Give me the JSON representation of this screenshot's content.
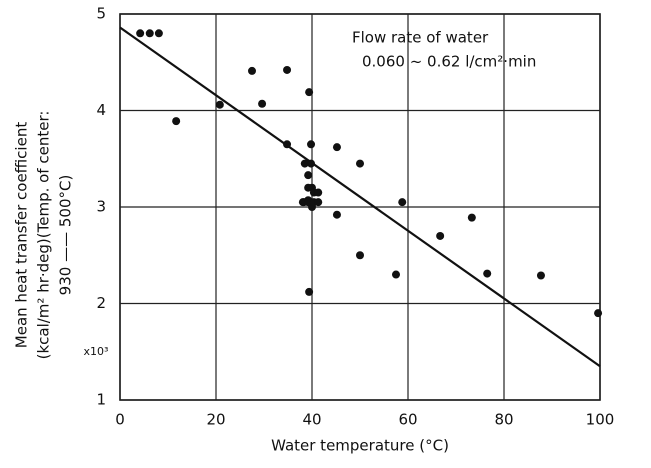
{
  "chart_data": {
    "type": "scatter",
    "xlabel": "Water temperature  (°C)",
    "ylabel": [
      "Mean heat transfer coefficient",
      "(kcal/m² hr·deg)(Temp. of center:",
      "930 —— 500°C)"
    ],
    "yunit": "x10³",
    "annotation": [
      "Flow rate of water",
      "0.060 ~ 0.62 l/cm²·min"
    ],
    "xlim": [
      0,
      100
    ],
    "ylim": [
      1,
      5
    ],
    "xticks": [
      0,
      20,
      40,
      60,
      80,
      100
    ],
    "yticks": [
      1,
      2,
      3,
      4,
      5
    ],
    "grid": true,
    "color": "#111",
    "series": [
      {
        "x": [
          4.2,
          6.2,
          8.1,
          11.7,
          20.8,
          27.5,
          29.6,
          34.8,
          34.8,
          39.4,
          39.8,
          38.5,
          39.8,
          39.2,
          40.0,
          39.2,
          40.0,
          38.3,
          39.2,
          40.4,
          41.3,
          38.1,
          39.2,
          40.4,
          41.3,
          39.4,
          45.2,
          45.2,
          50.0,
          50.0,
          58.8,
          57.5,
          66.7,
          73.3,
          76.5,
          87.7,
          99.6
        ],
        "values": [
          4.8,
          4.8,
          4.8,
          3.89,
          4.06,
          4.41,
          4.07,
          4.42,
          3.65,
          4.19,
          3.65,
          3.45,
          3.45,
          3.33,
          3.2,
          3.07,
          3.0,
          3.05,
          3.2,
          3.15,
          3.15,
          3.05,
          3.05,
          3.05,
          3.05,
          2.12,
          3.62,
          2.92,
          3.45,
          2.5,
          3.05,
          2.3,
          2.7,
          2.89,
          2.31,
          2.29,
          1.9
        ]
      }
    ],
    "trend": {
      "x": [
        0,
        100
      ],
      "values": [
        4.86,
        1.35
      ]
    }
  }
}
